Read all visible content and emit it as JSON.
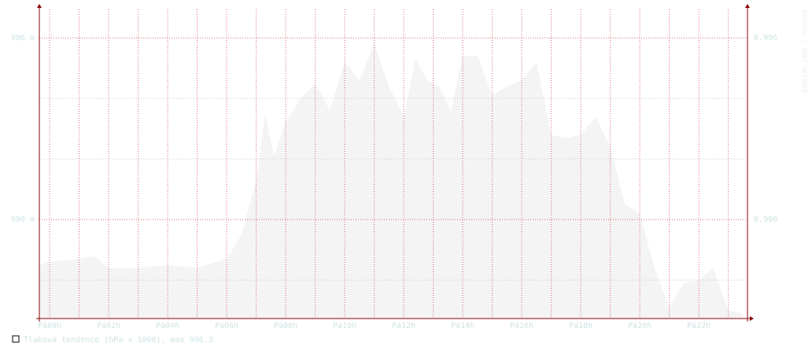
{
  "chart_data": {
    "type": "area",
    "legend": "Tlaková tendence (hPa x 1000), max 996.3",
    "watermark": "RRDTOOL / TOBI OETIKER",
    "series": [
      {
        "color": "#f4f4f4",
        "x": [
          -0.35,
          0,
          1,
          1.5,
          2,
          3,
          4,
          5,
          6,
          6.5,
          7,
          7.3,
          7.6,
          8,
          8.5,
          9,
          9.5,
          10,
          10.5,
          11,
          11.5,
          12,
          12.4,
          12.8,
          13.2,
          13.6,
          14,
          14.5,
          15,
          15.5,
          16,
          16.5,
          17,
          17.5,
          18,
          18.5,
          19,
          19.5,
          20,
          20.5,
          21,
          21.5,
          22,
          22.5,
          23,
          23.5
        ],
        "values": [
          988.5,
          988.6,
          988.7,
          988.8,
          988.4,
          988.4,
          988.5,
          988.4,
          988.7,
          989.5,
          991.3,
          993.5,
          992.1,
          993.2,
          994.0,
          994.5,
          993.6,
          995.2,
          994.6,
          995.8,
          994.4,
          993.4,
          995.3,
          994.6,
          994.4,
          993.6,
          995.4,
          995.4,
          994.1,
          994.4,
          994.6,
          995.2,
          992.8,
          992.7,
          992.8,
          993.4,
          992.4,
          990.5,
          990.2,
          988.4,
          987.1,
          987.9,
          988.0,
          988.4,
          987.0,
          986.9
        ]
      }
    ],
    "xlim": [
      -0.35,
      23.65
    ],
    "xticks": [
      {
        "value": 0,
        "label": "Pá00h"
      },
      {
        "value": 2,
        "label": "Pá02h"
      },
      {
        "value": 4,
        "label": "Pá04h"
      },
      {
        "value": 6,
        "label": "Pá06h"
      },
      {
        "value": 8,
        "label": "Pá08h"
      },
      {
        "value": 10,
        "label": "Pá10h"
      },
      {
        "value": 12,
        "label": "Pá12h"
      },
      {
        "value": 14,
        "label": "Pá14h"
      },
      {
        "value": 16,
        "label": "Pá16h"
      },
      {
        "value": 18,
        "label": "Pá18h"
      },
      {
        "value": 20,
        "label": "Pá20h"
      },
      {
        "value": 22,
        "label": "Pá22h"
      }
    ],
    "xminorticks": [
      1,
      3,
      5,
      7,
      9,
      11,
      13,
      15,
      17,
      19,
      21,
      23
    ],
    "ylim": [
      986.73,
      996.94
    ],
    "yticks": [
      {
        "value": 996,
        "label": "996 m"
      },
      {
        "value": 990,
        "label": "990 m"
      }
    ],
    "yminorticks": [
      994,
      992,
      988
    ],
    "y2lim": [
      0.98673,
      0.99694
    ],
    "y2ticks": [
      0.996,
      {
        "value": 0.99,
        "label": "0.990"
      }
    ],
    "grid": true,
    "axis_color": "#880000",
    "grid_color": "#e06070"
  }
}
